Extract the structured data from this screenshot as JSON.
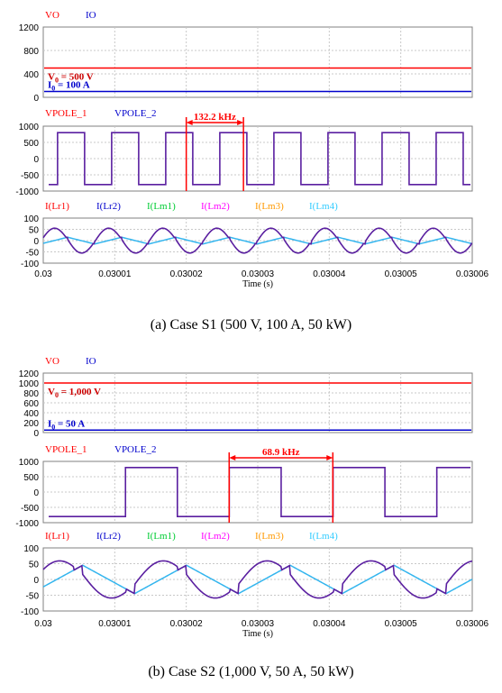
{
  "figure": {
    "x_axis": {
      "label": "Time (s)",
      "ticks": [
        "0.03",
        "0.03001",
        "0.03002",
        "0.03003",
        "0.03004",
        "0.03005",
        "0.03006"
      ]
    },
    "panel_a_caption": "(a)  Case  S1  (500  V,  100  A,  50  kW)",
    "panel_b_caption": "(b)  Case  S2  (1,000  V,  50  A,  50  kW)"
  },
  "chart_data": [
    {
      "id": "a1",
      "case": "S1",
      "type": "line",
      "legend": [
        {
          "name": "VO",
          "color": "#ff0000"
        },
        {
          "name": "IO",
          "color": "#0000cc"
        }
      ],
      "ylim": [
        0,
        1200
      ],
      "yticks": [
        0,
        400,
        800,
        1200
      ],
      "grid": true,
      "series": [
        {
          "name": "VO",
          "color": "#ff0000",
          "values": [
            500
          ]
        },
        {
          "name": "IO",
          "color": "#0000cc",
          "values": [
            100
          ]
        }
      ],
      "annotations": [
        {
          "text_main": "V",
          "text_sub": "0",
          "text_rest": " = 500 V",
          "color": "#cc0000",
          "x": 0.03,
          "y": 500
        },
        {
          "text_main": "I",
          "text_sub": "0",
          "text_rest": " = 100 A",
          "color": "#0000cc",
          "x": 0.03,
          "y": 100
        }
      ]
    },
    {
      "id": "a2",
      "case": "S1",
      "type": "line",
      "legend": [
        {
          "name": "VPOLE_1",
          "color": "#ff0000"
        },
        {
          "name": "VPOLE_2",
          "color": "#0000cc"
        }
      ],
      "ylim": [
        -1000,
        1000
      ],
      "yticks": [
        -1000,
        -500,
        0,
        500,
        1000
      ],
      "grid": true,
      "series": [
        {
          "name": "VPOLE",
          "kind": "square",
          "amplitude": 800,
          "frequency_khz": 132.2,
          "first_rise_s": 0.030002
        }
      ],
      "frequency_marker": {
        "text": "132.2 kHz",
        "x_start": 0.03002,
        "x_end": 0.030028,
        "color": "#ff0000"
      }
    },
    {
      "id": "a3",
      "case": "S1",
      "type": "line",
      "legend": [
        {
          "name": "I(Lr1)",
          "color": "#ff0000"
        },
        {
          "name": "I(Lr2)",
          "color": "#0000cc"
        },
        {
          "name": "I(Lm1)",
          "color": "#00cc33"
        },
        {
          "name": "I(Lm2)",
          "color": "#ff00ff"
        },
        {
          "name": "I(Lm3)",
          "color": "#ff9900"
        },
        {
          "name": "I(Lm4)",
          "color": "#33ccff"
        }
      ],
      "ylim": [
        -100,
        100
      ],
      "yticks": [
        -100,
        -50,
        0,
        50,
        100
      ],
      "grid": true,
      "series": [
        {
          "name": "I(Lr)",
          "kind": "resonant",
          "amplitude": 55,
          "frequency_khz": 132.2
        },
        {
          "name": "I(Lm)",
          "kind": "triangle",
          "amplitude": 15,
          "frequency_khz": 132.2
        }
      ]
    },
    {
      "id": "b1",
      "case": "S2",
      "type": "line",
      "legend": [
        {
          "name": "VO",
          "color": "#ff0000"
        },
        {
          "name": "IO",
          "color": "#0000cc"
        }
      ],
      "ylim": [
        0,
        1200
      ],
      "yticks": [
        0,
        200,
        400,
        600,
        800,
        1000,
        1200
      ],
      "grid": true,
      "series": [
        {
          "name": "VO",
          "color": "#ff0000",
          "values": [
            1000
          ]
        },
        {
          "name": "IO",
          "color": "#0000cc",
          "values": [
            50
          ]
        }
      ],
      "annotations": [
        {
          "text_main": "V",
          "text_sub": "0",
          "text_rest": " = 1,000 V",
          "color": "#cc0000",
          "x": 0.03,
          "y": 1000
        },
        {
          "text_main": "I",
          "text_sub": "0",
          "text_rest": " = 50 A",
          "color": "#0000cc",
          "x": 0.03,
          "y": 50
        }
      ]
    },
    {
      "id": "b2",
      "case": "S2",
      "type": "line",
      "legend": [
        {
          "name": "VPOLE_1",
          "color": "#ff0000"
        },
        {
          "name": "VPOLE_2",
          "color": "#0000cc"
        }
      ],
      "ylim": [
        -1000,
        1000
      ],
      "yticks": [
        -1000,
        -500,
        0,
        500,
        1000
      ],
      "grid": true,
      "series": [
        {
          "name": "VPOLE",
          "kind": "square",
          "amplitude": 800,
          "frequency_khz": 68.9,
          "first_rise_s": 0.0300115
        }
      ],
      "frequency_marker": {
        "text": "68.9 kHz",
        "x_start": 0.030026,
        "x_end": 0.0300405,
        "color": "#ff0000"
      }
    },
    {
      "id": "b3",
      "case": "S2",
      "type": "line",
      "legend": [
        {
          "name": "I(Lr1)",
          "color": "#ff0000"
        },
        {
          "name": "I(Lr2)",
          "color": "#0000cc"
        },
        {
          "name": "I(Lm1)",
          "color": "#00cc33"
        },
        {
          "name": "I(Lm2)",
          "color": "#ff00ff"
        },
        {
          "name": "I(Lm3)",
          "color": "#ff9900"
        },
        {
          "name": "I(Lm4)",
          "color": "#33ccff"
        }
      ],
      "ylim": [
        -100,
        100
      ],
      "yticks": [
        -100,
        -50,
        0,
        50,
        100
      ],
      "grid": true,
      "series": [
        {
          "name": "I(Lr)",
          "kind": "resonant",
          "amplitude": 58,
          "frequency_khz": 68.9
        },
        {
          "name": "I(Lm)",
          "kind": "triangle",
          "amplitude": 45,
          "frequency_khz": 68.9
        }
      ]
    }
  ]
}
